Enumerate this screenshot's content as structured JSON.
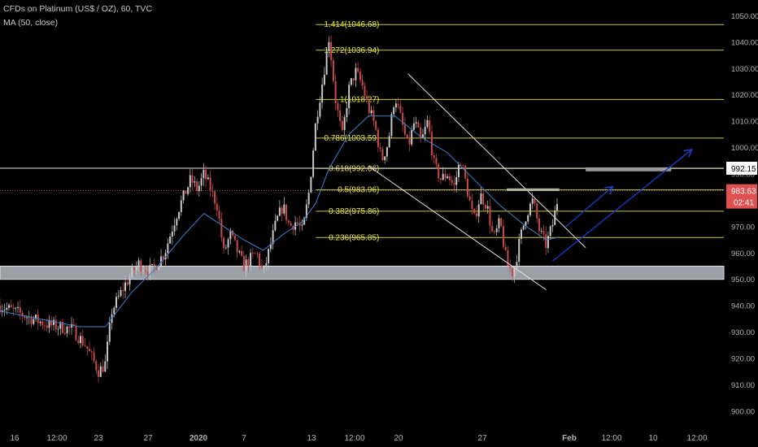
{
  "header": {
    "symbol_line": "CFDs on Platinum (US$ / OZ), 60, TVC",
    "indicator_line": "MA (50, close)"
  },
  "colors": {
    "background": "#000000",
    "bull": "#c8c8c8",
    "bear": "#c84a4a",
    "ma": "#3f7fc8",
    "fib": "#c8c830",
    "fib_label": "#e6e640",
    "channel": "#e0e0e0",
    "support_zone": "#b4bcc4",
    "resistance_zone": "#9a9a9a",
    "current_line": "#c86464",
    "arrow": "#1e3cc8",
    "axis_text": "#b4b4b4",
    "price_badge": "#e05050"
  },
  "chart_data": {
    "type": "candlestick",
    "title": "CFDs on Platinum (US$ / OZ), 60, TVC",
    "ylim": [
      895,
      1056
    ],
    "y_ticks": [
      900,
      910,
      920,
      930,
      940,
      950,
      960,
      970,
      980,
      990,
      1000,
      1010,
      1020,
      1030,
      1040,
      1050
    ],
    "x_ticks": [
      "16",
      "12:00",
      "23",
      "27",
      "2020",
      "7",
      "13",
      "12:00",
      "20",
      "27",
      "Feb",
      "12:00",
      "10",
      "12:00"
    ],
    "price_path": [
      {
        "t": 0,
        "p": 940
      },
      {
        "t": 3,
        "p": 937
      },
      {
        "t": 7,
        "p": 933
      },
      {
        "t": 11,
        "p": 931
      },
      {
        "t": 13,
        "p": 925
      },
      {
        "t": 15,
        "p": 915
      },
      {
        "t": 16,
        "p": 918
      },
      {
        "t": 17,
        "p": 938
      },
      {
        "t": 19,
        "p": 948
      },
      {
        "t": 21,
        "p": 956
      },
      {
        "t": 23,
        "p": 953
      },
      {
        "t": 25,
        "p": 960
      },
      {
        "t": 27,
        "p": 976
      },
      {
        "t": 29,
        "p": 988
      },
      {
        "t": 30,
        "p": 984
      },
      {
        "t": 31,
        "p": 990
      },
      {
        "t": 32,
        "p": 984
      },
      {
        "t": 33,
        "p": 978
      },
      {
        "t": 34,
        "p": 960
      },
      {
        "t": 35,
        "p": 967
      },
      {
        "t": 37,
        "p": 955
      },
      {
        "t": 39,
        "p": 960
      },
      {
        "t": 40,
        "p": 952
      },
      {
        "t": 42,
        "p": 972
      },
      {
        "t": 43,
        "p": 978
      },
      {
        "t": 44,
        "p": 970
      },
      {
        "t": 45,
        "p": 972
      },
      {
        "t": 46,
        "p": 968
      },
      {
        "t": 47,
        "p": 984
      },
      {
        "t": 48,
        "p": 1010
      },
      {
        "t": 49,
        "p": 1025
      },
      {
        "t": 50,
        "p": 1042
      },
      {
        "t": 51,
        "p": 1018
      },
      {
        "t": 52,
        "p": 1004
      },
      {
        "t": 53,
        "p": 1022
      },
      {
        "t": 54,
        "p": 1029
      },
      {
        "t": 55,
        "p": 1024
      },
      {
        "t": 56,
        "p": 1015
      },
      {
        "t": 57,
        "p": 1008
      },
      {
        "t": 58,
        "p": 995
      },
      {
        "t": 59,
        "p": 1002
      },
      {
        "t": 60,
        "p": 1020
      },
      {
        "t": 61,
        "p": 1010
      },
      {
        "t": 62,
        "p": 1000
      },
      {
        "t": 63,
        "p": 1010
      },
      {
        "t": 64,
        "p": 1002
      },
      {
        "t": 65,
        "p": 1010
      },
      {
        "t": 66,
        "p": 993
      },
      {
        "t": 67,
        "p": 988
      },
      {
        "t": 68,
        "p": 990
      },
      {
        "t": 69,
        "p": 985
      },
      {
        "t": 70,
        "p": 996
      },
      {
        "t": 71,
        "p": 984
      },
      {
        "t": 72,
        "p": 972
      },
      {
        "t": 73,
        "p": 982
      },
      {
        "t": 74,
        "p": 978
      },
      {
        "t": 75,
        "p": 965
      },
      {
        "t": 76,
        "p": 972
      },
      {
        "t": 77,
        "p": 956
      },
      {
        "t": 78,
        "p": 952
      },
      {
        "t": 79,
        "p": 965
      },
      {
        "t": 80,
        "p": 975
      },
      {
        "t": 81,
        "p": 980
      },
      {
        "t": 82,
        "p": 968
      },
      {
        "t": 83,
        "p": 963
      },
      {
        "t": 84,
        "p": 971
      },
      {
        "t": 85,
        "p": 984
      }
    ],
    "moving_average": [
      {
        "t": 0,
        "p": 938
      },
      {
        "t": 8,
        "p": 934
      },
      {
        "t": 12,
        "p": 932
      },
      {
        "t": 16,
        "p": 932
      },
      {
        "t": 20,
        "p": 945
      },
      {
        "t": 24,
        "p": 955
      },
      {
        "t": 28,
        "p": 967
      },
      {
        "t": 31,
        "p": 975
      },
      {
        "t": 34,
        "p": 970
      },
      {
        "t": 37,
        "p": 965
      },
      {
        "t": 40,
        "p": 961
      },
      {
        "t": 43,
        "p": 967
      },
      {
        "t": 46,
        "p": 972
      },
      {
        "t": 48,
        "p": 979
      },
      {
        "t": 50,
        "p": 992
      },
      {
        "t": 53,
        "p": 1005
      },
      {
        "t": 56,
        "p": 1012
      },
      {
        "t": 60,
        "p": 1012
      },
      {
        "t": 64,
        "p": 1004
      },
      {
        "t": 68,
        "p": 998
      },
      {
        "t": 72,
        "p": 988
      },
      {
        "t": 76,
        "p": 978
      },
      {
        "t": 80,
        "p": 970
      },
      {
        "t": 83,
        "p": 965
      },
      {
        "t": 85,
        "p": 966
      }
    ],
    "fib_levels": [
      {
        "label": "1.414(1046.68)",
        "value": 1046.68
      },
      {
        "label": "1.272(1036.94)",
        "value": 1036.94
      },
      {
        "label": "1(1018.27)",
        "value": 1018.27
      },
      {
        "label": "0.786(1003.59)",
        "value": 1003.59
      },
      {
        "label": "0.618(992.06)",
        "value": 992.06
      },
      {
        "label": "0.5(983.96)",
        "value": 983.96
      },
      {
        "label": "0.382(975.86)",
        "value": 975.86
      },
      {
        "label": "0.236(965.85)",
        "value": 965.85
      }
    ],
    "horizontal_lines": [
      {
        "value": 992.15,
        "label": "992.15"
      }
    ],
    "current_price": {
      "value": 983.63,
      "label": "983.63",
      "countdown": "02:41"
    },
    "support_zone": {
      "low": 950,
      "high": 955
    },
    "resistance_zone": {
      "low": 991,
      "high": 992.5,
      "t_start": 89,
      "t_end": 102
    },
    "mini_zone": {
      "low": 983.5,
      "high": 984.5,
      "t_start": 77,
      "t_end": 85
    },
    "channel": {
      "upper": [
        {
          "t": 62,
          "p": 1028
        },
        {
          "t": 89,
          "p": 962
        }
      ],
      "lower": [
        {
          "t": 56,
          "p": 993
        },
        {
          "t": 83,
          "p": 946
        }
      ]
    },
    "arrows": [
      {
        "from": {
          "t": 86,
          "p": 970
        },
        "to": {
          "t": 93,
          "p": 985
        }
      },
      {
        "from": {
          "t": 84,
          "p": 957
        },
        "to": {
          "t": 105,
          "p": 999
        }
      }
    ]
  }
}
